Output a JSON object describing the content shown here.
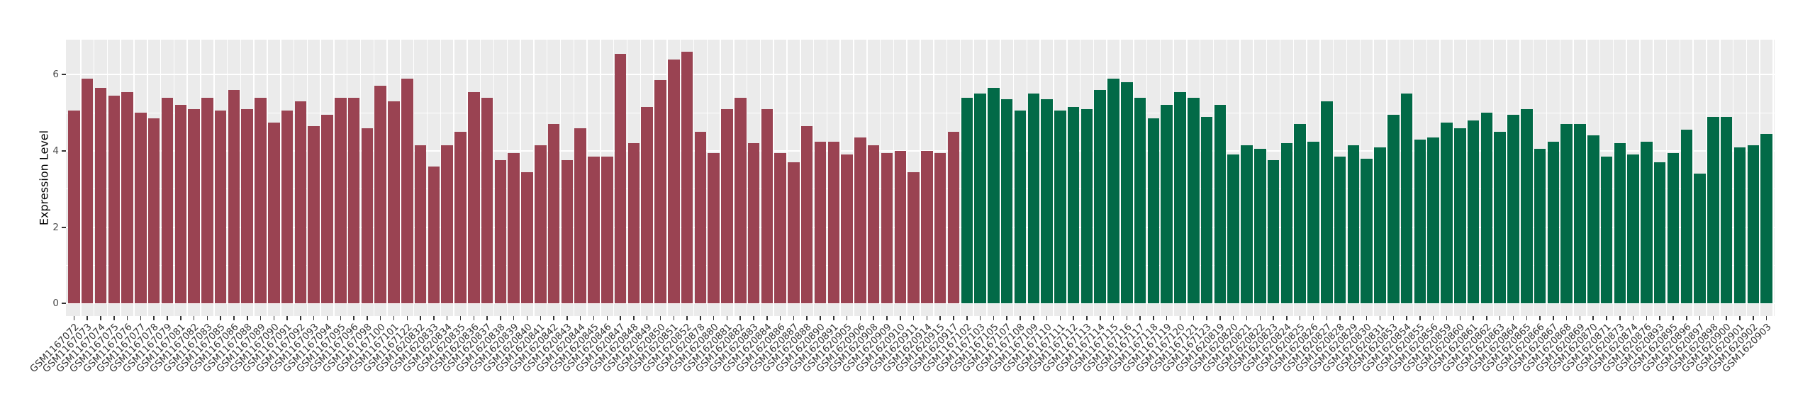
{
  "chart_data": {
    "type": "bar",
    "title": "",
    "xlabel": "",
    "ylabel": "Expression Level",
    "ylim": [
      -0.33,
      6.92
    ],
    "yticks_major": [
      0,
      2,
      4,
      6
    ],
    "yticks_minor": [
      1,
      3,
      5
    ],
    "grid": "on",
    "legend": "none",
    "panel_bg": "#EBEBEB",
    "gridline_color": "#FFFFFF",
    "tick_color": "#333333",
    "series": [
      {
        "name": "maroon-group",
        "color": "#9A4352",
        "categories": [
          "GSM1167072",
          "GSM1167073",
          "GSM1167074",
          "GSM1167075",
          "GSM1167076",
          "GSM1167077",
          "GSM1167078",
          "GSM1167079",
          "GSM1167081",
          "GSM1167082",
          "GSM1167083",
          "GSM1167085",
          "GSM1167086",
          "GSM1167088",
          "GSM1167089",
          "GSM1167090",
          "GSM1167091",
          "GSM1167092",
          "GSM1167093",
          "GSM1167094",
          "GSM1167095",
          "GSM1167096",
          "GSM1167098",
          "GSM1167100",
          "GSM1167101",
          "GSM1167122",
          "GSM1620832",
          "GSM1620833",
          "GSM1620834",
          "GSM1620835",
          "GSM1620836",
          "GSM1620837",
          "GSM1620838",
          "GSM1620839",
          "GSM1620840",
          "GSM1620841",
          "GSM1620842",
          "GSM1620843",
          "GSM1620844",
          "GSM1620845",
          "GSM1620846",
          "GSM1620847",
          "GSM1620848",
          "GSM1620849",
          "GSM1620850",
          "GSM1620851",
          "GSM1620852",
          "GSM1620878",
          "GSM1620880",
          "GSM1620881",
          "GSM1620882",
          "GSM1620883",
          "GSM1620884",
          "GSM1620886",
          "GSM1620887",
          "GSM1620888",
          "GSM1620890",
          "GSM1620891",
          "GSM1620905",
          "GSM1620906",
          "GSM1620908",
          "GSM1620909",
          "GSM1620910",
          "GSM1620911",
          "GSM1620914",
          "GSM1620915",
          "GSM1620917"
        ],
        "values": [
          5.05,
          5.9,
          5.65,
          5.45,
          5.55,
          5.0,
          4.85,
          5.4,
          5.2,
          5.1,
          5.4,
          5.05,
          5.6,
          5.1,
          5.4,
          4.75,
          5.05,
          5.3,
          4.65,
          4.95,
          5.4,
          5.4,
          4.6,
          5.7,
          5.3,
          5.9,
          4.15,
          3.6,
          4.15,
          4.5,
          5.55,
          5.4,
          3.75,
          3.95,
          3.45,
          4.15,
          4.7,
          3.75,
          4.6,
          3.85,
          3.85,
          6.55,
          4.2,
          5.15,
          5.85,
          6.4,
          6.6,
          4.5,
          3.95,
          5.1,
          5.4,
          4.2,
          5.1,
          3.95,
          3.7,
          4.65,
          4.25,
          4.25,
          3.9,
          4.35,
          4.15,
          3.95,
          4.0,
          3.45,
          4.0,
          3.95,
          4.5
        ]
      },
      {
        "name": "green-group",
        "color": "#026A47",
        "categories": [
          "GSM1167102",
          "GSM1167103",
          "GSM1167105",
          "GSM1167107",
          "GSM1167108",
          "GSM1167109",
          "GSM1167110",
          "GSM1167111",
          "GSM1167112",
          "GSM1167113",
          "GSM1167114",
          "GSM1167115",
          "GSM1167116",
          "GSM1167117",
          "GSM1167118",
          "GSM1167119",
          "GSM1167120",
          "GSM1167121",
          "GSM1167123",
          "GSM1620819",
          "GSM1620820",
          "GSM1620821",
          "GSM1620822",
          "GSM1620823",
          "GSM1620824",
          "GSM1620825",
          "GSM1620826",
          "GSM1620827",
          "GSM1620828",
          "GSM1620829",
          "GSM1620830",
          "GSM1620831",
          "GSM1620853",
          "GSM1620854",
          "GSM1620855",
          "GSM1620856",
          "GSM1620859",
          "GSM1620860",
          "GSM1620861",
          "GSM1620862",
          "GSM1620863",
          "GSM1620864",
          "GSM1620865",
          "GSM1620866",
          "GSM1620867",
          "GSM1620868",
          "GSM1620869",
          "GSM1620870",
          "GSM1620871",
          "GSM1620873",
          "GSM1620874",
          "GSM1620876",
          "GSM1620893",
          "GSM1620895",
          "GSM1620896",
          "GSM1620897",
          "GSM1620898",
          "GSM1620900",
          "GSM1620901",
          "GSM1620902",
          "GSM1620903"
        ],
        "values": [
          5.4,
          5.5,
          5.65,
          5.35,
          5.05,
          5.5,
          5.35,
          5.05,
          5.15,
          5.1,
          5.6,
          5.9,
          5.8,
          5.4,
          4.85,
          5.2,
          5.55,
          5.4,
          4.9,
          5.2,
          3.9,
          4.15,
          4.05,
          3.75,
          4.2,
          4.7,
          4.25,
          5.3,
          3.85,
          4.15,
          3.8,
          4.1,
          4.95,
          5.5,
          4.3,
          4.35,
          4.75,
          4.6,
          4.8,
          5.0,
          4.5,
          4.95,
          5.1,
          4.05,
          4.25,
          4.7,
          4.7,
          4.4,
          3.85,
          4.2,
          3.9,
          4.25,
          3.7,
          3.95,
          4.55,
          3.4,
          4.9,
          4.9,
          4.1,
          4.15,
          4.45
        ]
      }
    ]
  },
  "axes": {
    "y_title": "Expression Level",
    "y_tick_labels": [
      "0",
      "2",
      "4",
      "6"
    ]
  }
}
